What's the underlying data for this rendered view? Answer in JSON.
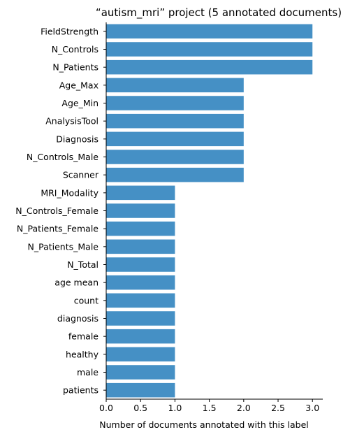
{
  "chart_data": {
    "type": "bar",
    "orientation": "horizontal",
    "title": "“autism_mri” project (5 annotated documents)",
    "xlabel": "Number of documents annotated with this label",
    "ylabel": "",
    "xlim": [
      0,
      3.15
    ],
    "xticks": [
      0.0,
      0.5,
      1.0,
      1.5,
      2.0,
      2.5,
      3.0
    ],
    "xtick_labels": [
      "0.0",
      "0.5",
      "1.0",
      "1.5",
      "2.0",
      "2.5",
      "3.0"
    ],
    "grid": false,
    "bar_color": "#4590c5",
    "categories": [
      "FieldStrength",
      "N_Controls",
      "N_Patients",
      "Age_Max",
      "Age_Min",
      "AnalysisTool",
      "Diagnosis",
      "N_Controls_Male",
      "Scanner",
      "MRI_Modality",
      "N_Controls_Female",
      "N_Patients_Female",
      "N_Patients_Male",
      "N_Total",
      "age mean",
      "count",
      "diagnosis",
      "female",
      "healthy",
      "male",
      "patients"
    ],
    "values": [
      3,
      3,
      3,
      2,
      2,
      2,
      2,
      2,
      2,
      1,
      1,
      1,
      1,
      1,
      1,
      1,
      1,
      1,
      1,
      1,
      1
    ]
  }
}
